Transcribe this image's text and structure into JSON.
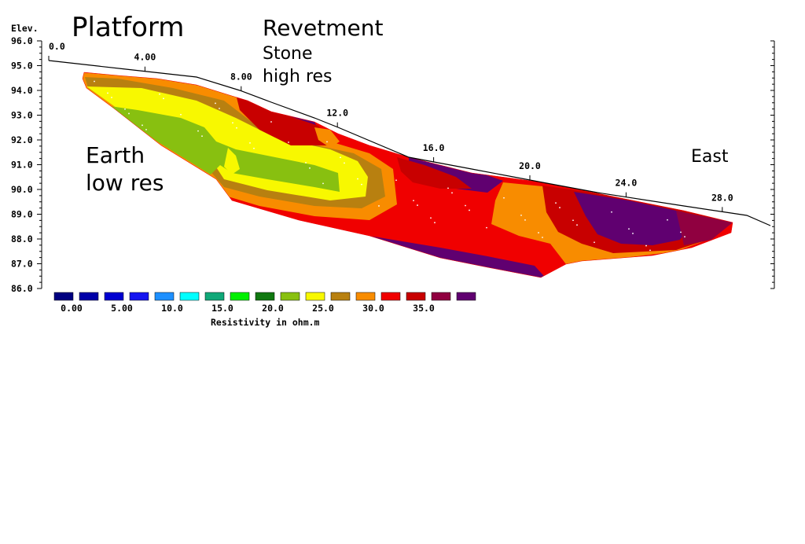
{
  "chart_data": {
    "type": "heatmap",
    "title": "",
    "xlabel": "",
    "ylabel": "Elev.",
    "legend_title": "Resistivity in ohm.m",
    "xlim": [
      0,
      30
    ],
    "ylim": [
      86.0,
      96.0
    ],
    "x_ticks": [
      "0.0",
      "4.00",
      "8.00",
      "12.0",
      "16.0",
      "20.0",
      "24.0",
      "28.0"
    ],
    "y_ticks": [
      "86.0",
      "87.0",
      "88.0",
      "89.0",
      "90.0",
      "91.0",
      "92.0",
      "93.0",
      "94.0",
      "95.0",
      "96.0"
    ],
    "colorscale": {
      "colors": [
        "#000080",
        "#0000A8",
        "#0000D0",
        "#1414F0",
        "#1E90FF",
        "#00FFFF",
        "#10A878",
        "#00F000",
        "#107810",
        "#88C010",
        "#F8F800",
        "#B88010",
        "#F88C00",
        "#F00000",
        "#C80000",
        "#900040",
        "#600070"
      ],
      "labels": [
        "0.00",
        "5.00",
        "10.0",
        "15.0",
        "20.0",
        "25.0",
        "30.0",
        "35.0"
      ]
    },
    "regions_approx": [
      {
        "zone": "upper-left near-surface",
        "value": 30
      },
      {
        "zone": "left interior core",
        "value": 20
      },
      {
        "zone": "left interior",
        "value": 25
      },
      {
        "zone": "middle body",
        "value": 33
      },
      {
        "zone": "right near-surface",
        "value": 38
      },
      {
        "zone": "bottom edge",
        "value": 38
      }
    ]
  },
  "annotations": {
    "platform": "Platform",
    "revetment": "Revetment",
    "stone": "Stone",
    "high_res": "high res",
    "earth": "Earth",
    "low_res": "low res",
    "east": "East"
  }
}
